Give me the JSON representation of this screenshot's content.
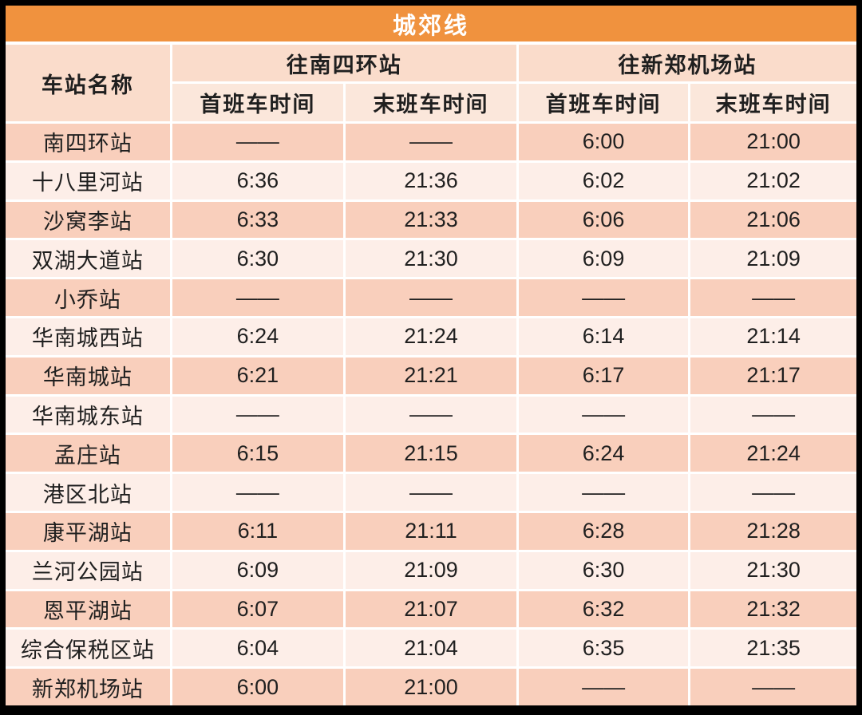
{
  "title": "城郊线",
  "header": {
    "station_col": "车站名称",
    "groups": [
      {
        "label": "往南四环站",
        "sub": [
          "首班车时间",
          "末班车时间"
        ]
      },
      {
        "label": "往新郑机场站",
        "sub": [
          "首班车时间",
          "末班车时间"
        ]
      }
    ]
  },
  "no_service_mark": "——",
  "rows": [
    {
      "station": "南四环站",
      "times": [
        "——",
        "——",
        "6:00",
        "21:00"
      ]
    },
    {
      "station": "十八里河站",
      "times": [
        "6:36",
        "21:36",
        "6:02",
        "21:02"
      ]
    },
    {
      "station": "沙窝李站",
      "times": [
        "6:33",
        "21:33",
        "6:06",
        "21:06"
      ]
    },
    {
      "station": "双湖大道站",
      "times": [
        "6:30",
        "21:30",
        "6:09",
        "21:09"
      ]
    },
    {
      "station": "小乔站",
      "times": [
        "——",
        "——",
        "——",
        "——"
      ]
    },
    {
      "station": "华南城西站",
      "times": [
        "6:24",
        "21:24",
        "6:14",
        "21:14"
      ]
    },
    {
      "station": "华南城站",
      "times": [
        "6:21",
        "21:21",
        "6:17",
        "21:17"
      ]
    },
    {
      "station": "华南城东站",
      "times": [
        "——",
        "——",
        "——",
        "——"
      ]
    },
    {
      "station": "孟庄站",
      "times": [
        "6:15",
        "21:15",
        "6:24",
        "21:24"
      ]
    },
    {
      "station": "港区北站",
      "times": [
        "——",
        "——",
        "——",
        "——"
      ]
    },
    {
      "station": "康平湖站",
      "times": [
        "6:11",
        "21:11",
        "6:28",
        "21:28"
      ]
    },
    {
      "station": "兰河公园站",
      "times": [
        "6:09",
        "21:09",
        "6:30",
        "21:30"
      ]
    },
    {
      "station": "恩平湖站",
      "times": [
        "6:07",
        "21:07",
        "6:32",
        "21:32"
      ]
    },
    {
      "station": "综合保税区站",
      "times": [
        "6:04",
        "21:04",
        "6:35",
        "21:35"
      ]
    },
    {
      "station": "新郑机场站",
      "times": [
        "6:00",
        "21:00",
        "——",
        "——"
      ]
    }
  ],
  "colors": {
    "frame": "#000000",
    "title_bar": "#F0923E",
    "title_text": "#FFFFFF",
    "header_band": "#FADCCB",
    "subheader_band": "#FBE7DB",
    "row_band_odd": "#F9CFBC",
    "row_band_even": "#FDEEE8",
    "gridline": "#FFFFFF",
    "text": "#1F1F1F"
  }
}
